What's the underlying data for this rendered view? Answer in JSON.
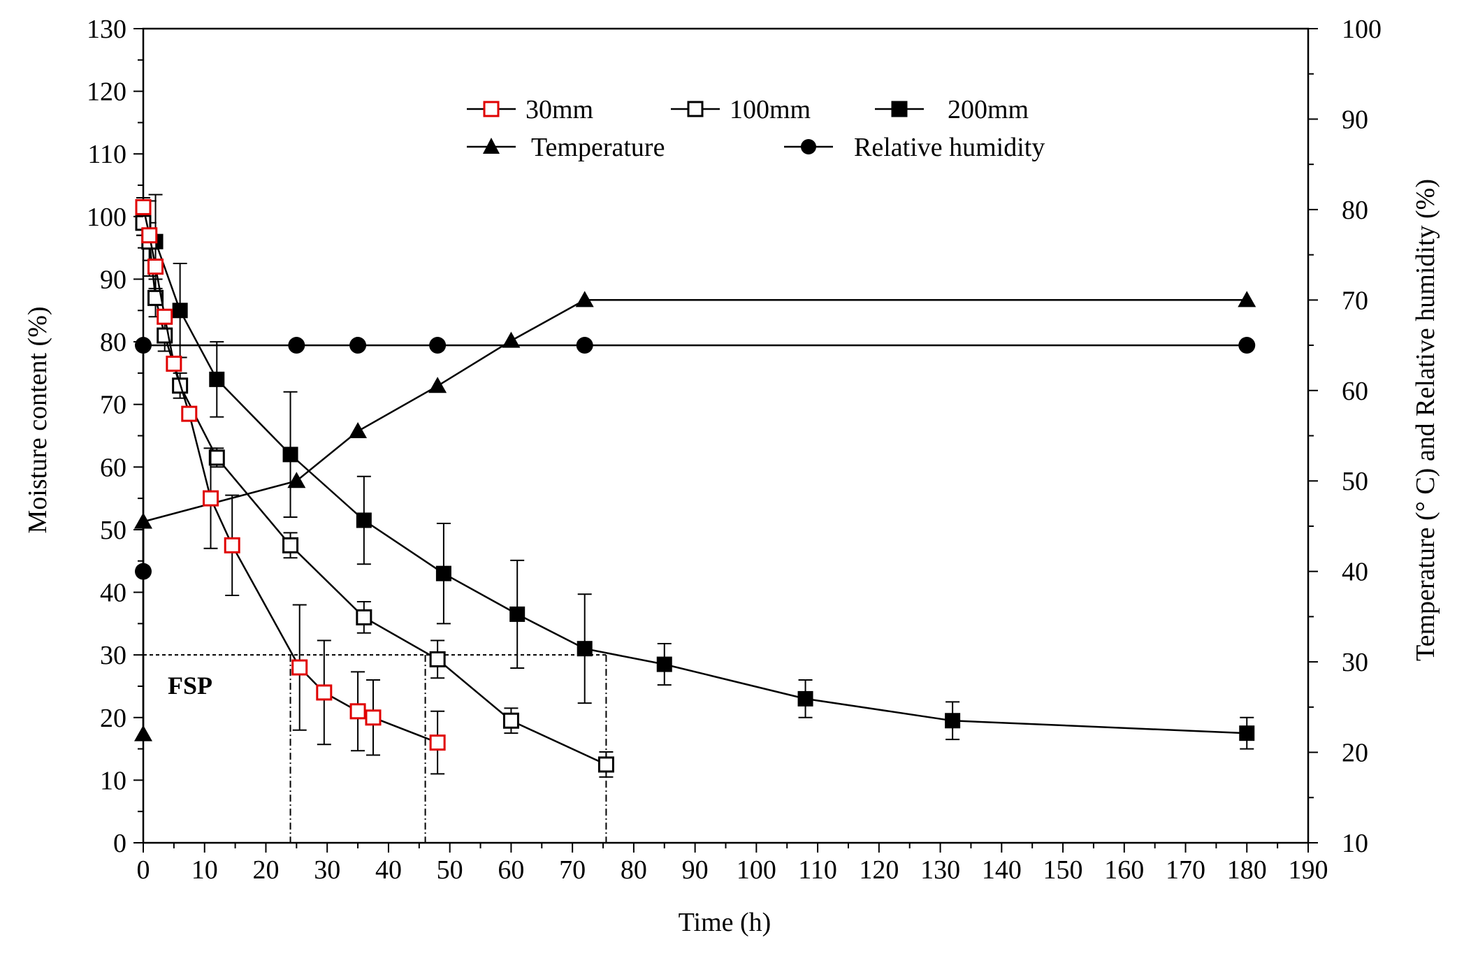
{
  "chart_data": {
    "type": "line",
    "title": "",
    "xlabel": "Time  (h)",
    "ylabel_left": "Moisture  content  (%)",
    "ylabel_right": "Temperature  (° C)  and  Relative  humidity  (%)",
    "xlim": [
      0,
      190
    ],
    "ylim_left": [
      0,
      130
    ],
    "ylim_right": [
      10,
      100
    ],
    "x_ticks": [
      0,
      10,
      20,
      30,
      40,
      50,
      60,
      70,
      80,
      90,
      100,
      110,
      120,
      130,
      140,
      150,
      160,
      170,
      180,
      190
    ],
    "y_ticks_left": [
      0,
      10,
      20,
      30,
      40,
      50,
      60,
      70,
      80,
      90,
      100,
      110,
      120,
      130
    ],
    "y_ticks_right": [
      10,
      20,
      30,
      40,
      50,
      60,
      70,
      80,
      90,
      100
    ],
    "grid": false,
    "legend_position": "top-center",
    "series": [
      {
        "name": "30mm",
        "axis": "left",
        "marker": "open-square",
        "color": "#e00000",
        "x": [
          0,
          1,
          2,
          3.5,
          5,
          7.5,
          11,
          14.5,
          25.5,
          29.5,
          35,
          37.5,
          48
        ],
        "y": [
          101.5,
          97,
          92,
          84,
          76.5,
          68.5,
          55,
          47.5,
          28,
          24,
          21,
          20,
          16
        ],
        "err": [
          0,
          0,
          0,
          0,
          0,
          0,
          8,
          8,
          10,
          8.3,
          6.3,
          6,
          5
        ]
      },
      {
        "name": "100mm",
        "axis": "left",
        "marker": "open-square",
        "color": "#000000",
        "x": [
          0,
          1,
          2,
          3.5,
          6,
          12,
          24,
          36,
          48,
          60,
          75.5
        ],
        "y": [
          99,
          96,
          87,
          81,
          73,
          61.5,
          47.5,
          36,
          29.3,
          19.5,
          12.5
        ],
        "err": [
          2,
          3,
          3,
          2.5,
          2,
          1.5,
          2,
          2.5,
          3,
          2,
          2
        ]
      },
      {
        "name": "200mm",
        "axis": "left",
        "marker": "filled-square",
        "color": "#000000",
        "x": [
          0,
          1,
          2,
          6,
          12,
          24,
          36,
          49,
          61,
          72,
          85,
          108,
          132,
          180
        ],
        "y": [
          100,
          96.5,
          96,
          85,
          74,
          62,
          51.5,
          43,
          36.5,
          31,
          28.5,
          23,
          19.5,
          17.5
        ],
        "err": [
          3,
          6,
          7.5,
          7.5,
          6,
          10,
          7,
          8,
          8.6,
          8.7,
          3.3,
          3,
          3,
          2.5
        ]
      },
      {
        "name": "Temperature",
        "axis": "right",
        "marker": "filled-triangle",
        "color": "#000000",
        "x": [
          0,
          0,
          25,
          35,
          48,
          60,
          72,
          180
        ],
        "y": [
          22,
          45.5,
          50,
          55.5,
          60.5,
          65.5,
          70,
          70
        ]
      },
      {
        "name": "Relative  humidity",
        "axis": "right",
        "marker": "filled-circle",
        "color": "#000000",
        "x": [
          0,
          0,
          25,
          35,
          48,
          72,
          180
        ],
        "y": [
          40,
          65,
          65,
          65,
          65,
          65,
          65
        ]
      }
    ],
    "annotations": {
      "fsp_label": "FSP",
      "fsp_level": 30,
      "fsp_times": [
        24,
        46,
        75.5
      ]
    }
  }
}
